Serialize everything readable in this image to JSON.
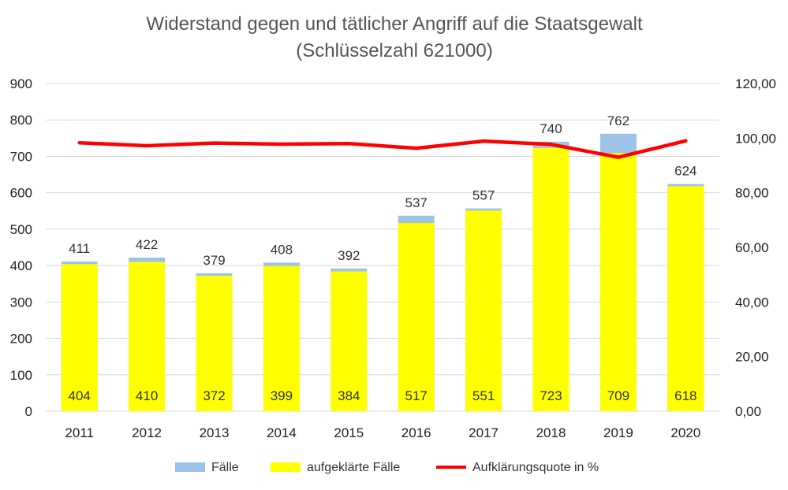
{
  "chart_data": {
    "type": "bar",
    "title_line1": "Widerstand gegen und tätlicher Angriff auf die Staatsgewalt",
    "title_line2": "(Schlüsselzahl 621000)",
    "categories": [
      "2011",
      "2012",
      "2013",
      "2014",
      "2015",
      "2016",
      "2017",
      "2018",
      "2019",
      "2020"
    ],
    "series": [
      {
        "name": "Fälle",
        "color": "#9dc3e6",
        "values": [
          411,
          422,
          379,
          408,
          392,
          537,
          557,
          740,
          762,
          624
        ]
      },
      {
        "name": "aufgeklärte Fälle",
        "color": "#ffff00",
        "values": [
          404,
          410,
          372,
          399,
          384,
          517,
          551,
          723,
          709,
          618
        ]
      },
      {
        "name": "Aufklärungsquote in %",
        "color": "#ff0000",
        "axis": "secondary",
        "values": [
          98.3,
          97.2,
          98.2,
          97.8,
          98.0,
          96.3,
          98.9,
          97.7,
          93.0,
          99.0
        ]
      }
    ],
    "y_left": {
      "min": 0,
      "max": 900,
      "step": 100,
      "ticks": [
        "0",
        "100",
        "200",
        "300",
        "400",
        "500",
        "600",
        "700",
        "800",
        "900"
      ]
    },
    "y_right": {
      "min": 0,
      "max": 120,
      "step": 20,
      "ticks": [
        "0,00",
        "20,00",
        "40,00",
        "60,00",
        "80,00",
        "100,00",
        "120,00"
      ]
    },
    "grid": true,
    "legend_position": "bottom"
  }
}
